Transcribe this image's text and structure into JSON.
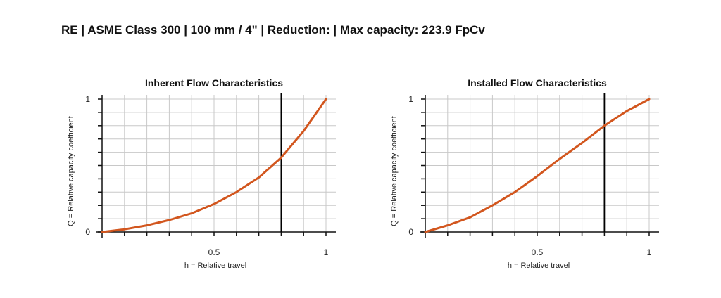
{
  "header": {
    "title": "RE | ASME Class 300 | 100 mm / 4\" | Reduction:  | Max capacity: 223.9 FpCv"
  },
  "colors": {
    "curve": "#d2561e",
    "grid": "#c8c8c8",
    "axis": "#111111",
    "marker": "#000000"
  },
  "chart_data": [
    {
      "type": "line",
      "title": "Inherent Flow Characteristics",
      "xlabel": "h = Relative travel",
      "ylabel": "Q = Relative capacity coefficient",
      "xlim": [
        0,
        1
      ],
      "ylim": [
        0,
        1
      ],
      "x_ticks": [
        {
          "v": 0.5,
          "label": "0.5"
        },
        {
          "v": 1,
          "label": "1"
        }
      ],
      "y_ticks": [
        {
          "v": 0,
          "label": "0"
        },
        {
          "v": 1,
          "label": "1"
        }
      ],
      "grid": true,
      "marker_x": 0.8,
      "series": [
        {
          "x": [
            0,
            0.1,
            0.2,
            0.3,
            0.4,
            0.5,
            0.6,
            0.7,
            0.8,
            0.9,
            1.0
          ],
          "y": [
            0,
            0.02,
            0.05,
            0.09,
            0.14,
            0.21,
            0.3,
            0.41,
            0.56,
            0.76,
            1.0
          ]
        }
      ]
    },
    {
      "type": "line",
      "title": "Installed Flow Characteristics",
      "xlabel": "h = Relative travel",
      "ylabel": "Q = Relative capacity coefficient",
      "xlim": [
        0,
        1
      ],
      "ylim": [
        0,
        1
      ],
      "x_ticks": [
        {
          "v": 0.5,
          "label": "0.5"
        },
        {
          "v": 1,
          "label": "1"
        }
      ],
      "y_ticks": [
        {
          "v": 0,
          "label": "0"
        },
        {
          "v": 1,
          "label": "1"
        }
      ],
      "grid": true,
      "marker_x": 0.8,
      "series": [
        {
          "x": [
            0,
            0.1,
            0.2,
            0.3,
            0.4,
            0.5,
            0.6,
            0.7,
            0.8,
            0.9,
            1.0
          ],
          "y": [
            0,
            0.05,
            0.11,
            0.2,
            0.3,
            0.42,
            0.55,
            0.67,
            0.8,
            0.91,
            1.0
          ]
        }
      ]
    }
  ]
}
